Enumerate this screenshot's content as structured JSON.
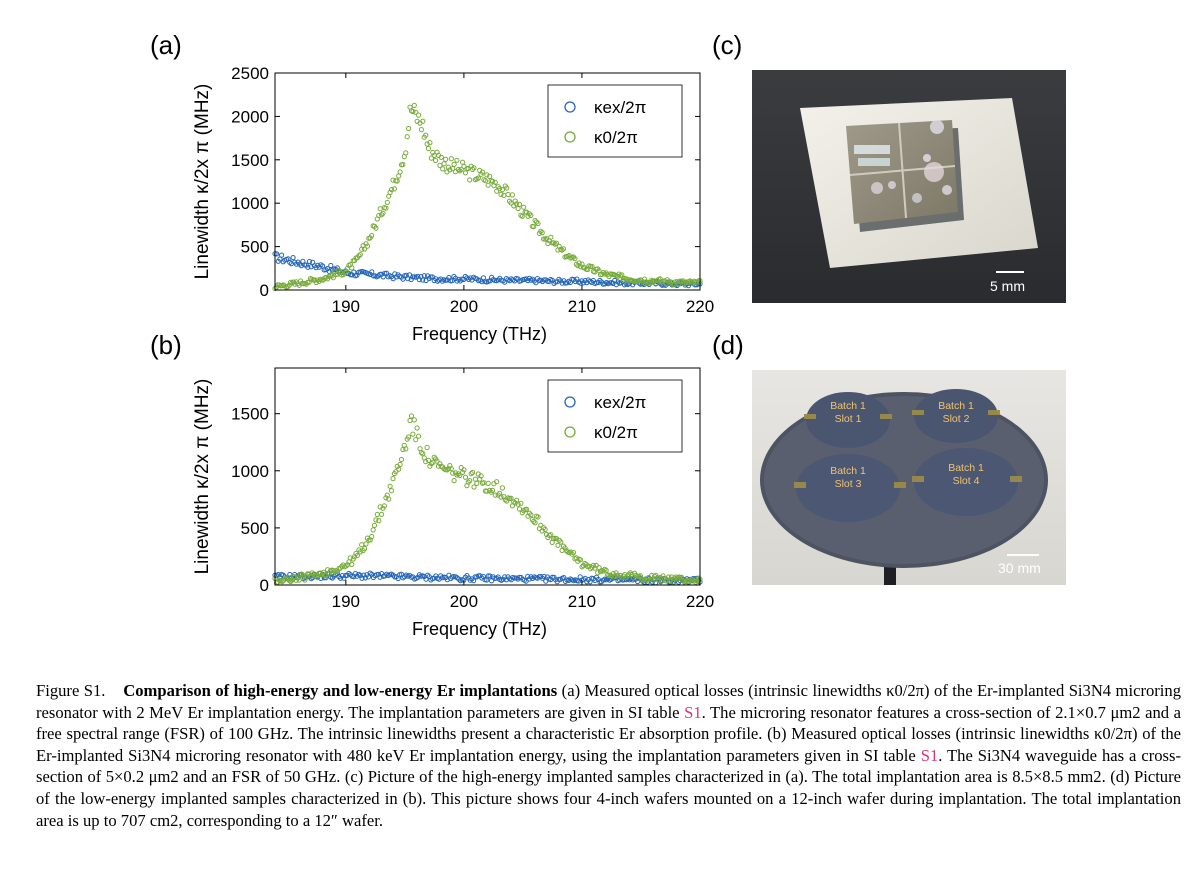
{
  "panels": {
    "a": {
      "label": "(a)",
      "chart_data": {
        "type": "scatter",
        "xlabel": "Frequency (THz)",
        "ylabel": "Linewidth κ/2x π (MHz)",
        "xlim": [
          184,
          220
        ],
        "ylim": [
          0,
          2500
        ],
        "xticks": [
          190,
          200,
          210,
          220
        ],
        "yticks": [
          0,
          500,
          1000,
          1500,
          2000,
          2500
        ],
        "legend_placement": "top-right",
        "series": [
          {
            "name": "κex/2π",
            "color": "#2566b8",
            "x": [
              184,
              186,
              188,
              190,
              192,
              194,
              196,
              198,
              200,
              202,
              204,
              206,
              208,
              210,
              212,
              214,
              216,
              218,
              220
            ],
            "values": [
              380,
              320,
              270,
              200,
              180,
              160,
              140,
              130,
              130,
              120,
              110,
              110,
              100,
              100,
              90,
              80,
              80,
              70,
              70
            ]
          },
          {
            "name": "κ0/2π",
            "color": "#77ab3a",
            "x": [
              184,
              186,
              188,
              190,
              191,
              192,
              193,
              194,
              195,
              195.5,
              196,
              196.5,
              197,
              198,
              199,
              200,
              201,
              202,
              203,
              204,
              205,
              206,
              207,
              208,
              209,
              210,
              212,
              214,
              216,
              218,
              220
            ],
            "values": [
              40,
              80,
              130,
              220,
              350,
              600,
              900,
              1200,
              1600,
              2100,
              2000,
              1900,
              1650,
              1500,
              1420,
              1380,
              1330,
              1280,
              1200,
              1050,
              900,
              750,
              600,
              480,
              370,
              280,
              180,
              130,
              110,
              90,
              80
            ]
          }
        ]
      }
    },
    "b": {
      "label": "(b)",
      "chart_data": {
        "type": "scatter",
        "xlabel": "Frequency (THz)",
        "ylabel": "Linewidth κ/2x π (MHz)",
        "xlim": [
          184,
          220
        ],
        "ylim": [
          0,
          1900
        ],
        "xticks": [
          190,
          200,
          210,
          220
        ],
        "yticks": [
          0,
          500,
          1000,
          1500
        ],
        "legend_placement": "top-right",
        "series": [
          {
            "name": "κex/2π",
            "color": "#2566b8",
            "x": [
              184,
              186,
              188,
              190,
              192,
              194,
              196,
              198,
              200,
              202,
              204,
              206,
              208,
              210,
              212,
              214,
              216,
              218,
              220
            ],
            "values": [
              70,
              75,
              80,
              80,
              80,
              75,
              70,
              65,
              60,
              60,
              55,
              55,
              50,
              50,
              45,
              45,
              40,
              40,
              40
            ]
          },
          {
            "name": "κ0/2π",
            "color": "#77ab3a",
            "x": [
              184,
              186,
              188,
              190,
              191,
              192,
              193,
              194,
              195,
              195.5,
              196,
              197,
              198,
              199,
              200,
              201,
              202,
              203,
              204,
              205,
              206,
              207,
              208,
              209,
              210,
              212,
              214,
              216,
              218,
              220
            ],
            "values": [
              40,
              60,
              100,
              170,
              260,
              420,
              650,
              900,
              1200,
              1450,
              1300,
              1100,
              1020,
              980,
              950,
              920,
              880,
              830,
              760,
              680,
              580,
              470,
              360,
              270,
              190,
              110,
              80,
              60,
              50,
              40
            ]
          }
        ]
      }
    },
    "c": {
      "label": "(c)",
      "scale_bar": "5 mm"
    },
    "d": {
      "label": "(d)",
      "scale_bar": "30 mm",
      "wafers": [
        {
          "line1": "Batch 1",
          "line2": "Slot 1"
        },
        {
          "line1": "Batch 1",
          "line2": "Slot 2"
        },
        {
          "line1": "Batch 1",
          "line2": "Slot 3"
        },
        {
          "line1": "Batch 1",
          "line2": "Slot 4"
        }
      ]
    }
  },
  "caption": {
    "figure_label": "Figure S1.",
    "title": "Comparison of high-energy and low-energy Er implantations",
    "ref_label": "S1",
    "body": [
      "(a) Measured optical losses (intrinsic linewidths κ0/2π) of the Er-implanted Si3N4 microring resonator with 2 MeV Er implantation energy. The implantation parameters are given in SI table",
      ". The microring resonator features a cross-section of 2.1×0.7 μm2 and a free spectral range (FSR) of 100 GHz. The intrinsic linewidths present a characteristic Er absorption profile. (b) Measured optical losses (intrinsic linewidths κ0/2π) of the Er-implanted Si3N4 microring resonator with 480 keV Er implantation energy, using the implantation parameters given in SI table",
      ". The Si3N4 waveguide has a cross-section of 5×0.2 μm2 and an FSR of 50 GHz. (c) Picture of the high-energy implanted samples characterized in (a). The total implantation area is 8.5×8.5 mm2. (d) Picture of the low-energy implanted samples characterized in (b). This picture shows four 4-inch wafers mounted on a 12-inch wafer during implantation. The total implantation area is up to 707 cm2, corresponding to a 12″ wafer."
    ]
  }
}
